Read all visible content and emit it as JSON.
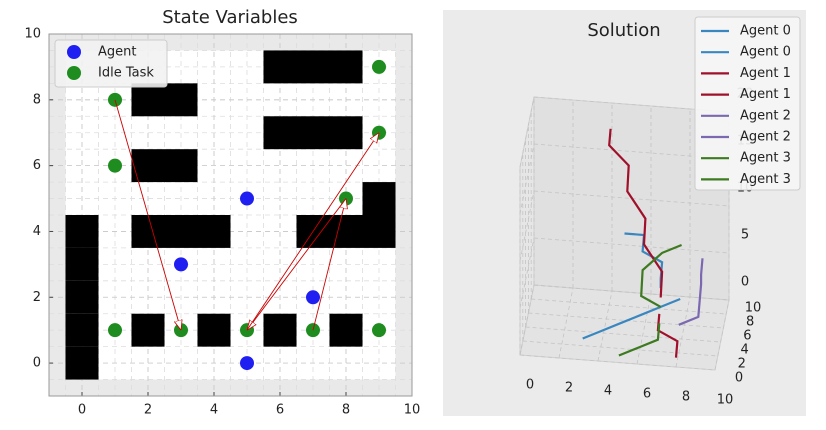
{
  "chart_data": [
    {
      "type": "scatter",
      "title": "State Variables",
      "xlim": [
        -1,
        10
      ],
      "ylim": [
        -1,
        10
      ],
      "xticks": [
        0,
        2,
        4,
        6,
        8,
        10
      ],
      "yticks": [
        0,
        2,
        4,
        6,
        8,
        10
      ],
      "grid": true,
      "legend": "upper left",
      "series": [
        {
          "name": "Agent",
          "color": "#1f1ff2",
          "x": [
            5,
            3,
            7,
            5
          ],
          "y": [
            5,
            3,
            2,
            0
          ]
        },
        {
          "name": "Idle Task",
          "color": "#1f8c1f",
          "x": [
            1,
            1,
            9,
            9,
            8,
            1,
            3,
            5,
            7,
            9
          ],
          "y": [
            8,
            6,
            9,
            7,
            5,
            1,
            1,
            1,
            1,
            1
          ]
        }
      ],
      "obstacles": {
        "color": "#000000",
        "x": [
          0,
          0,
          0,
          0,
          0,
          6,
          7,
          8,
          2,
          3,
          6,
          7,
          8,
          2,
          3,
          9,
          2,
          3,
          4,
          7,
          8,
          9,
          2,
          4,
          6,
          8
        ],
        "y": [
          0,
          1,
          2,
          3,
          4,
          9,
          9,
          9,
          8,
          8,
          7,
          7,
          7,
          6,
          6,
          5,
          4,
          4,
          4,
          4,
          4,
          4,
          1,
          1,
          1,
          1
        ]
      },
      "arrows": {
        "color": "#cc0000",
        "items": [
          {
            "x": [
              1,
              3
            ],
            "y": [
              8,
              1
            ]
          },
          {
            "x": [
              8,
              5
            ],
            "y": [
              5,
              1
            ]
          },
          {
            "x": [
              5,
              9
            ],
            "y": [
              1,
              7
            ]
          },
          {
            "x": [
              7,
              8
            ],
            "y": [
              1,
              5
            ]
          }
        ]
      }
    },
    {
      "type": "line3d",
      "title": "Solution",
      "xlim": [
        0,
        10
      ],
      "ylim": [
        0,
        10
      ],
      "zlim": [
        0,
        20
      ],
      "xticks": [
        0,
        2,
        4,
        6,
        8,
        10
      ],
      "yticks": [
        0,
        2,
        4,
        6,
        8,
        10
      ],
      "zticks": [
        0,
        5,
        10,
        15,
        20
      ],
      "grid": true,
      "legend": "upper right",
      "series": [
        {
          "name": "Agent 0",
          "color": "#3a87c0",
          "x": [
            3,
            4,
            5,
            6,
            7,
            8
          ],
          "y": [
            3,
            3,
            3,
            3,
            3,
            3
          ],
          "z": [
            0,
            1,
            2,
            3,
            4,
            5
          ]
        },
        {
          "name": "Agent 0",
          "color": "#3a87c0",
          "x": [
            5,
            6,
            6,
            7,
            7,
            7
          ],
          "y": [
            5,
            5,
            4,
            4,
            3,
            3
          ],
          "z": [
            10,
            10,
            9,
            8,
            7,
            6
          ]
        },
        {
          "name": "Agent 1",
          "color": "#a0102a",
          "x": [
            4,
            4,
            5,
            5,
            6,
            6,
            7,
            7
          ],
          "y": [
            9,
            8,
            8,
            7,
            6,
            5,
            4,
            3
          ],
          "z": [
            18,
            17,
            15,
            13,
            11,
            9,
            7,
            5
          ]
        },
        {
          "name": "Agent 1",
          "color": "#a0102a",
          "x": [
            7,
            7,
            8,
            8
          ],
          "y": [
            2,
            1,
            1,
            0
          ],
          "z": [
            4,
            3,
            2,
            1
          ]
        },
        {
          "name": "Agent 2",
          "color": "#7b68b0",
          "x": [
            9,
            9,
            9,
            9
          ],
          "y": [
            5,
            4,
            4,
            3
          ],
          "z": [
            8,
            7,
            6,
            5
          ]
        },
        {
          "name": "Agent 2",
          "color": "#7b68b0",
          "x": [
            8,
            9,
            9
          ],
          "y": [
            2,
            2,
            3
          ],
          "z": [
            3,
            4,
            5
          ]
        },
        {
          "name": "Agent 3",
          "color": "#3d7a20",
          "x": [
            7,
            6,
            6,
            7,
            8
          ],
          "y": [
            3,
            3,
            4,
            4,
            4
          ],
          "z": [
            4,
            5,
            7,
            9,
            10
          ]
        },
        {
          "name": "Agent 3",
          "color": "#3d7a20",
          "x": [
            5,
            6,
            7,
            7
          ],
          "y": [
            1,
            1,
            1,
            2
          ],
          "z": [
            0,
            1,
            2,
            3
          ]
        }
      ]
    }
  ]
}
